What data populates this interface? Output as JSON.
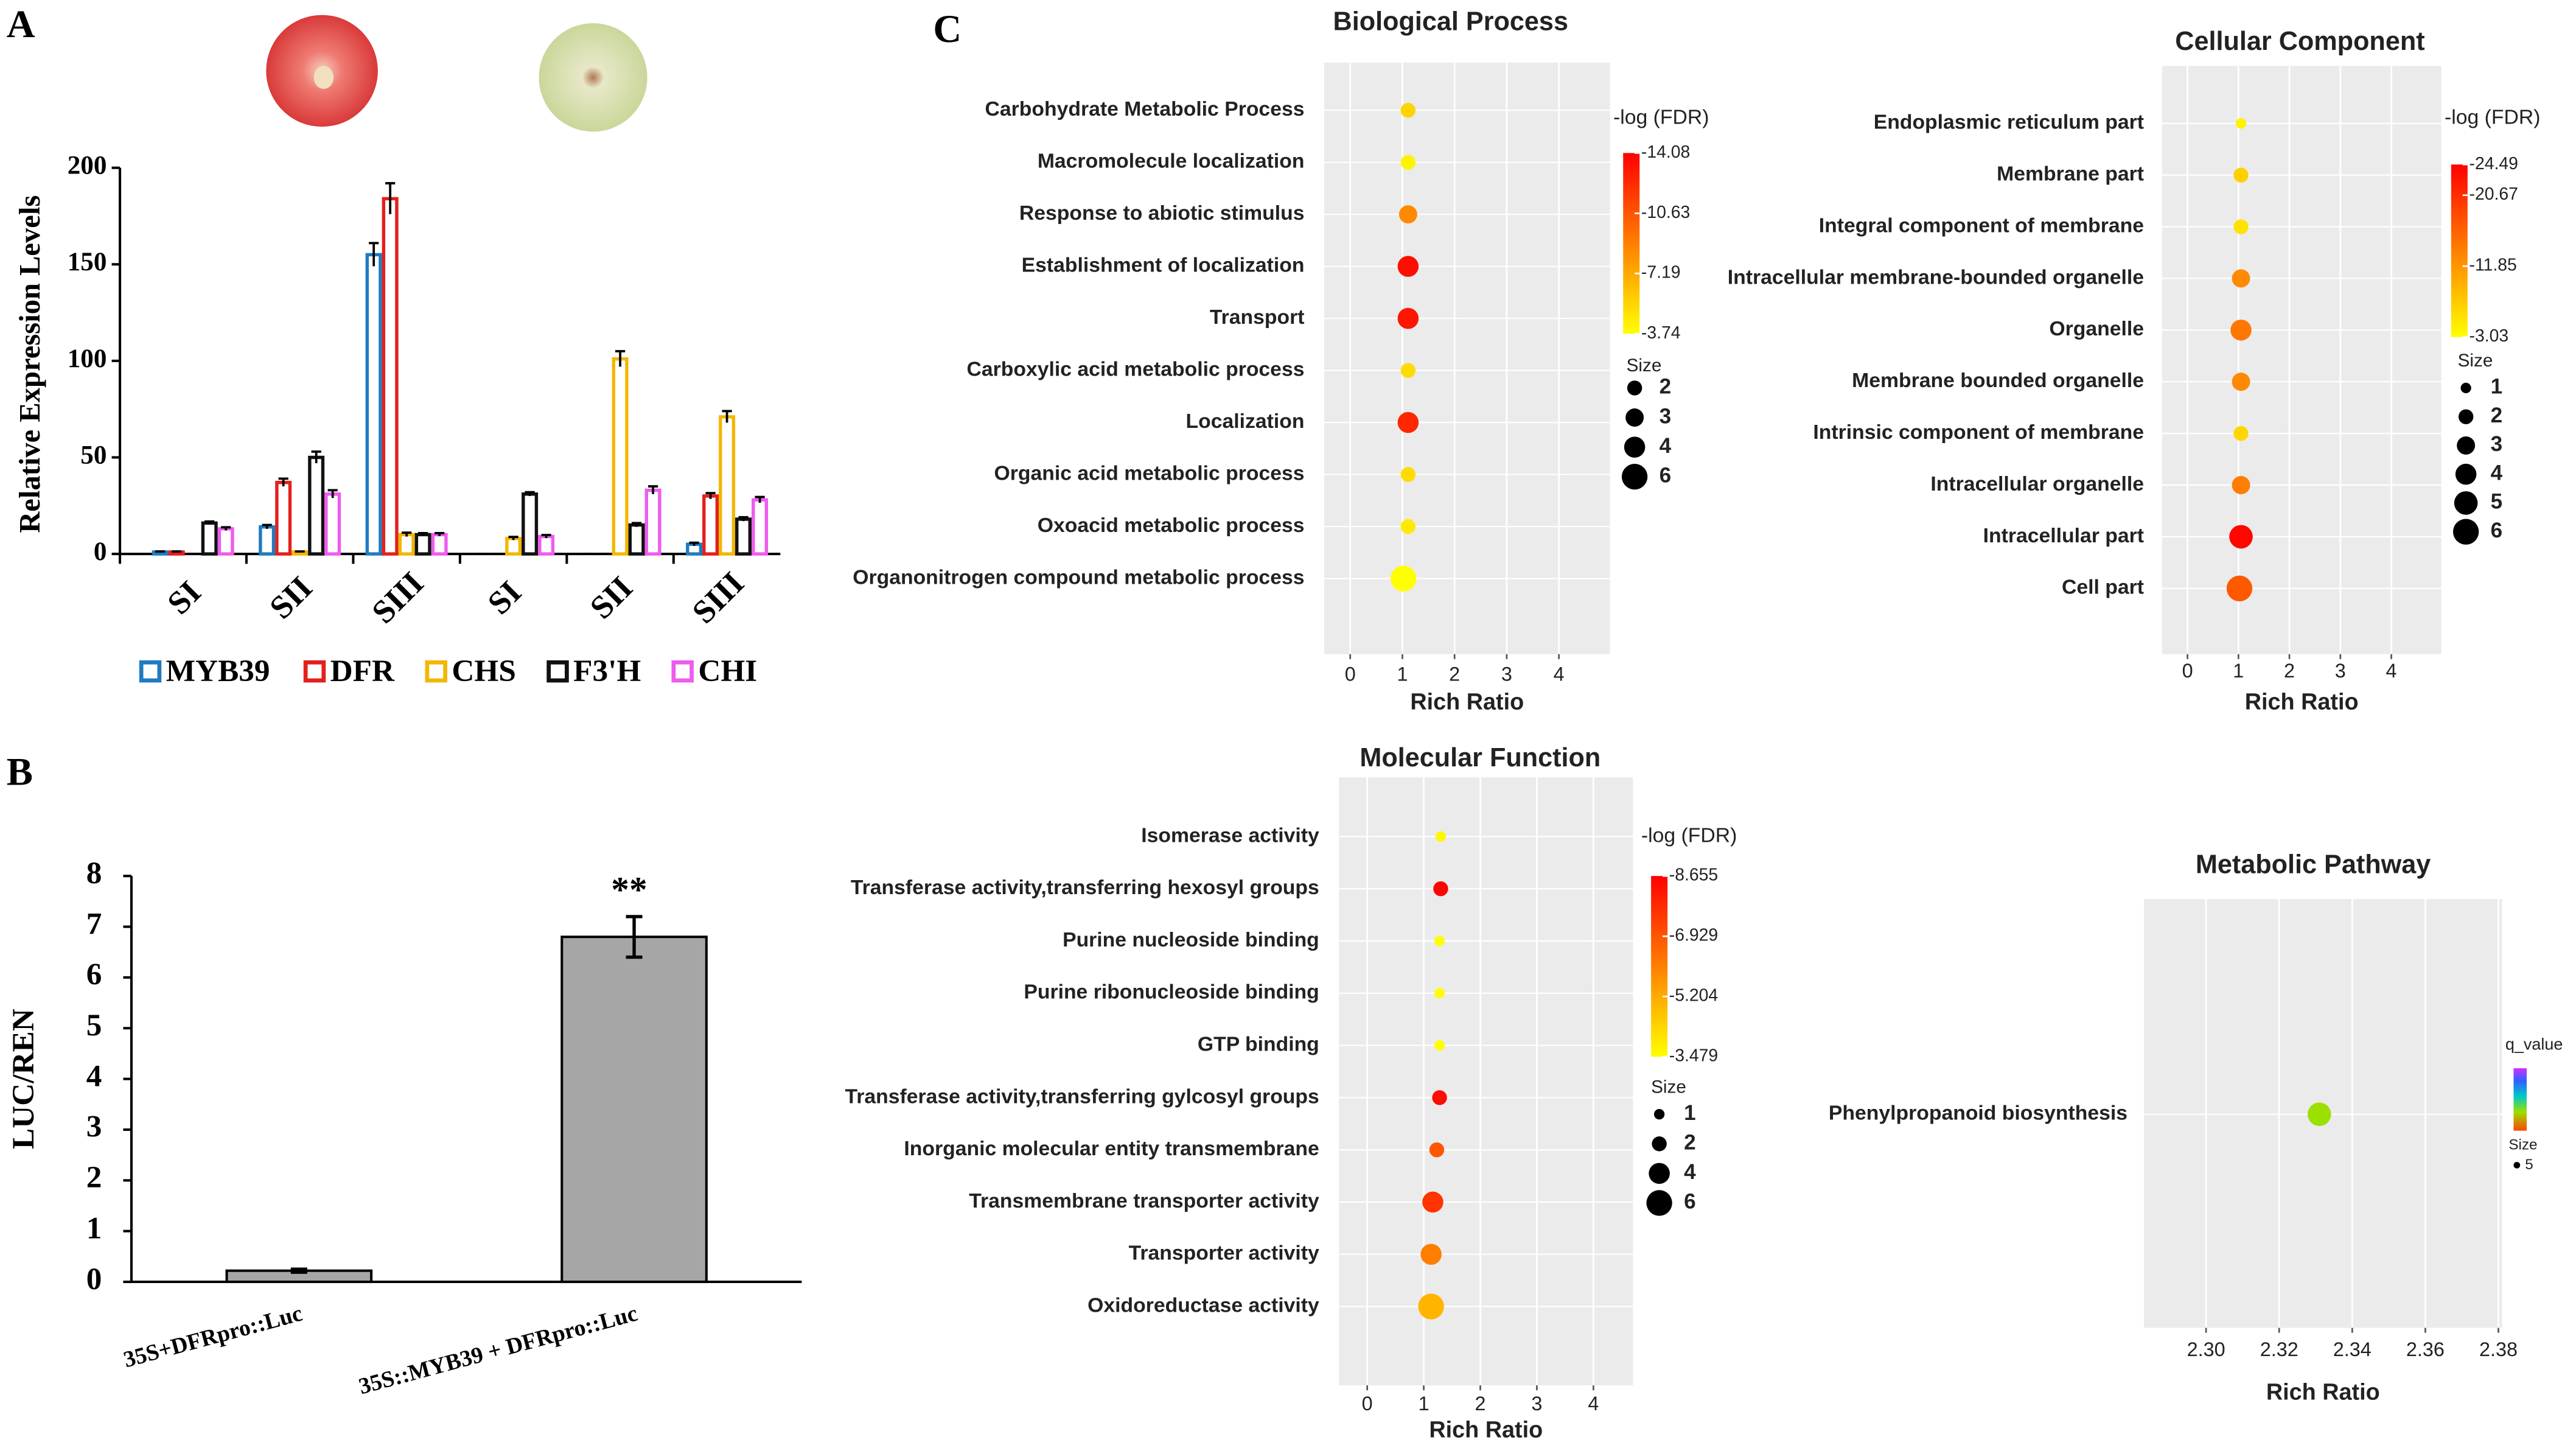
{
  "panel_labels": [
    "A",
    "B",
    "C"
  ],
  "chart_data": [
    {
      "type": "grouped_bar",
      "y_label": "Relative Expression Levels",
      "categories": [
        "SI",
        "SII",
        "SIII",
        "SI",
        "SII",
        "SIII"
      ],
      "series": [
        {
          "name": "MYB39",
          "color": "#1f7bc1",
          "values": [
            1,
            14,
            155,
            0,
            0,
            5
          ],
          "errors": [
            0.3,
            1,
            6,
            0,
            0,
            0.8
          ]
        },
        {
          "name": "DFR",
          "color": "#e3201c",
          "values": [
            1,
            37,
            184,
            0,
            0,
            30
          ],
          "errors": [
            0.3,
            2,
            8,
            0,
            0,
            1.5
          ]
        },
        {
          "name": "CHS",
          "color": "#f2b705",
          "values": [
            0,
            1,
            10,
            8,
            101,
            71
          ],
          "errors": [
            0,
            0.3,
            1,
            0.8,
            4,
            3
          ]
        },
        {
          "name": "F3'H",
          "color": "#111111",
          "values": [
            16,
            50,
            10,
            31,
            15,
            18
          ],
          "errors": [
            0.8,
            3,
            0.8,
            1,
            1,
            1
          ]
        },
        {
          "name": "CHI",
          "color": "#ee5cee",
          "values": [
            13,
            31,
            10,
            9,
            33,
            28
          ],
          "errors": [
            0.8,
            2,
            0.8,
            0.8,
            2,
            1.5
          ]
        }
      ],
      "ylim": [
        0,
        200
      ],
      "yticks": [
        0,
        50,
        100,
        150,
        200
      ]
    },
    {
      "type": "bar",
      "y_label": "LUC/REN",
      "categories": [
        "35S+DFRpro::Luc",
        "35S::MYB39 + DFRpro::Luc"
      ],
      "values": [
        0.22,
        6.8
      ],
      "errors": [
        0.03,
        0.4
      ],
      "color": "#a6a6a6",
      "annotation": "**",
      "ylim": [
        0,
        8
      ],
      "yticks": [
        0,
        1,
        2,
        3,
        4,
        5,
        6,
        7,
        8
      ]
    },
    {
      "type": "bubble",
      "title": "Biological Process",
      "x_label": "Rich Ratio",
      "categories": [
        "Carbohydrate Metabolic Process",
        "Macromolecule localization",
        "Response to abiotic stimulus",
        "Establishment of localization",
        "Transport",
        "Carboxylic acid metabolic process",
        "Localization",
        "Organic acid metabolic process",
        "Oxoacid metabolic process",
        "Organonitrogen compound metabolic process"
      ],
      "x": [
        1.11,
        1.11,
        1.11,
        1.11,
        1.11,
        1.11,
        1.11,
        1.11,
        1.11,
        1.02
      ],
      "sizes": [
        2,
        2,
        3,
        4,
        4,
        2,
        4,
        2,
        2,
        6
      ],
      "color_values": [
        -5.5,
        -4.2,
        -8.5,
        -13.5,
        -13.2,
        -5.2,
        -12.5,
        -5.2,
        -4.6,
        -3.74
      ],
      "xlim": [
        -0.5,
        4.98
      ],
      "xticks": [
        0,
        1,
        2,
        3,
        4
      ],
      "color_label": "-log (FDR)",
      "clim": [
        -14.08,
        -3.74
      ],
      "cticks": [
        -14.08,
        -10.63,
        -7.19,
        -3.74
      ],
      "size_label": "Size",
      "size_legend": [
        2,
        3,
        4,
        6
      ]
    },
    {
      "type": "bubble",
      "title": "Cellular Component",
      "x_label": "Rich Ratio",
      "categories": [
        "Endoplasmic reticulum part",
        "Membrane part",
        "Integral component of membrane",
        "Intracellular membrane-bounded organelle",
        "Organelle",
        "Membrane bounded organelle",
        "Intrinsic component of membrane",
        "Intracellular organelle",
        "Intracellular part",
        "Cell part"
      ],
      "x": [
        1.05,
        1.05,
        1.05,
        1.05,
        1.05,
        1.05,
        1.05,
        1.05,
        1.05,
        1.02
      ],
      "sizes": [
        1,
        2,
        2,
        3,
        4,
        3,
        2,
        3,
        5,
        6
      ],
      "color_values": [
        -4,
        -7,
        -5.5,
        -13,
        -14.5,
        -13,
        -6.5,
        -14,
        -24,
        -17
      ],
      "xlim": [
        -0.5,
        4.98
      ],
      "xticks": [
        0,
        1,
        2,
        3,
        4
      ],
      "color_label": "-log (FDR)",
      "clim": [
        -24.49,
        -3.03
      ],
      "cticks": [
        -24.49,
        -20.67,
        -11.85,
        -3.03
      ],
      "size_label": "Size",
      "size_legend": [
        1,
        2,
        3,
        4,
        5,
        6
      ]
    },
    {
      "type": "bubble",
      "title": "Molecular Function",
      "x_label": "Rich Ratio",
      "categories": [
        "Isomerase activity",
        "Transferase activity,transferring hexosyl groups",
        "Purine nucleoside binding",
        "Purine ribonucleoside binding",
        "GTP binding",
        "Transferase activity,transferring gylcosyl groups",
        "Inorganic molecular entity transmembrane",
        "Transmembrane transporter activity",
        "Transporter activity",
        "Oxidoreductase activity"
      ],
      "x": [
        1.3,
        1.3,
        1.28,
        1.28,
        1.28,
        1.28,
        1.23,
        1.16,
        1.13,
        1.13
      ],
      "sizes": [
        1,
        2,
        1,
        1,
        1,
        2,
        2,
        4,
        4,
        6
      ],
      "color_values": [
        -3.6,
        -8.6,
        -3.5,
        -3.5,
        -3.5,
        -8.4,
        -6.9,
        -7.6,
        -6.1,
        -5.0
      ],
      "xlim": [
        -0.5,
        4.7
      ],
      "xticks": [
        0,
        1,
        2,
        3,
        4
      ],
      "color_label": "-log (FDR)",
      "clim": [
        -8.655,
        -3.479
      ],
      "cticks": [
        -8.655,
        -6.929,
        -5.204,
        -3.479
      ],
      "size_label": "Size",
      "size_legend": [
        1,
        2,
        4,
        6
      ]
    },
    {
      "type": "bubble",
      "title": "Metabolic Pathway",
      "x_label": "Rich Ratio",
      "categories": [
        "Phenylpropanoid biosynthesis"
      ],
      "x": [
        2.331
      ],
      "sizes": [
        5
      ],
      "color": "#9be000",
      "xlim": [
        2.283,
        2.381
      ],
      "xticks": [
        {
          "value": 2.3,
          "label": "2.30"
        },
        2.32,
        2.34,
        2.36,
        2.38
      ],
      "color_label": "q_value",
      "size_label": "Size",
      "size_legend": [
        5
      ]
    }
  ]
}
